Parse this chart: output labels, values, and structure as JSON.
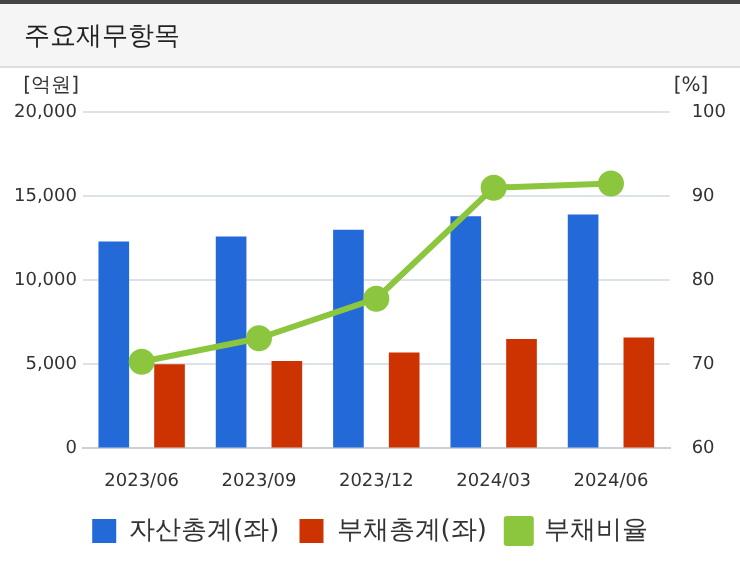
{
  "chart_data": {
    "type": "bar",
    "title": "주요재무항목",
    "ylabel": "[억원]",
    "y2label": "[%]",
    "categories": [
      "2023/06",
      "2023/09",
      "2023/12",
      "2024/03",
      "2024/06"
    ],
    "series": [
      {
        "name": "자산총계(좌)",
        "color": "#2369d8",
        "values": [
          12300,
          12600,
          13000,
          13800,
          13900
        ]
      },
      {
        "name": "부채총계(좌)",
        "color": "#cc3300",
        "values": [
          5000,
          5200,
          5700,
          6500,
          6600
        ]
      },
      {
        "name": "부채비율",
        "type": "line",
        "axis": "y2",
        "color": "#8cc63f",
        "marker": "circle",
        "values": [
          70.3,
          73.1,
          77.8,
          91.0,
          91.5
        ]
      }
    ],
    "ylim": [
      0,
      20000
    ],
    "yticks": [
      {
        "value": 0,
        "label": "0"
      },
      {
        "value": 5000,
        "label": "5,000"
      },
      {
        "value": 10000,
        "label": "10,000"
      },
      {
        "value": 15000,
        "label": "15,000"
      },
      {
        "value": 20000,
        "label": "20,000"
      }
    ],
    "y2lim": [
      60,
      100
    ],
    "y2ticks": [
      60,
      70,
      80,
      90,
      100
    ],
    "grid": "y",
    "legend": "bottom"
  }
}
